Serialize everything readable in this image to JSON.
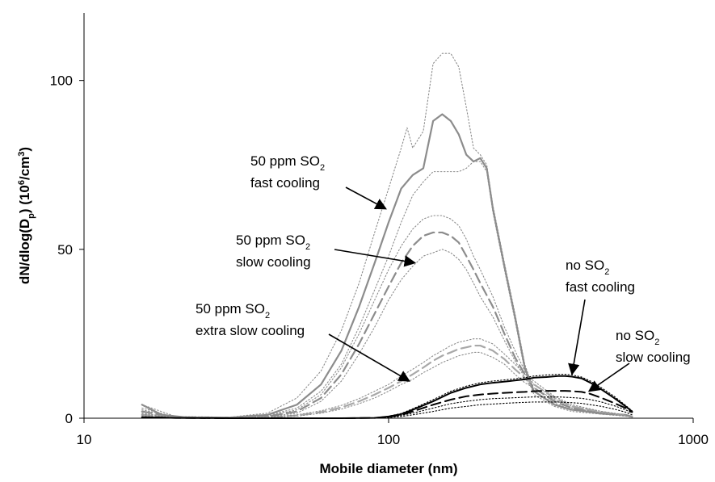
{
  "chart_data": {
    "type": "line",
    "xlabel": "Mobile diameter (nm)",
    "ylabel": {
      "prefix": "dN/dlog(D",
      "sub": "p",
      "middle": ") (10",
      "sup1": "6",
      "middle2": "/cm",
      "sup2": "3",
      "suffix": ")"
    },
    "x_scale": "log",
    "xlim": [
      10,
      1000
    ],
    "ylim": [
      0,
      120
    ],
    "x_ticks": [
      10,
      100,
      1000
    ],
    "x_tick_labels": [
      "10",
      "100",
      "1000"
    ],
    "y_ticks": [
      0,
      50,
      100
    ],
    "y_tick_labels": [
      "0",
      "50",
      "100"
    ],
    "grid": false,
    "legend": "none",
    "colors": {
      "gray": "#8c8c8c",
      "light_gray": "#a8a8a8",
      "black": "#000000"
    },
    "series": [
      {
        "style": "solid-gray",
        "x": [
          15.5,
          18,
          22,
          30,
          40,
          50,
          60,
          70,
          80,
          90,
          100,
          110,
          120,
          130,
          140,
          150,
          160,
          170,
          180,
          190,
          200,
          210,
          220,
          240,
          260,
          280,
          300,
          350,
          400,
          500,
          600,
          630
        ],
        "y": [
          4,
          1,
          0.2,
          0.2,
          1,
          4,
          10,
          20,
          33,
          46,
          58,
          68,
          72,
          74,
          88,
          90,
          88,
          84,
          78,
          76,
          77,
          74,
          62,
          45,
          30,
          15,
          8,
          4,
          2.5,
          1.5,
          1,
          0.5
        ]
      },
      {
        "style": "dotted-gray-upper",
        "x": [
          15.5,
          20,
          30,
          40,
          50,
          60,
          70,
          80,
          90,
          100,
          110,
          115,
          120,
          130,
          140,
          150,
          160,
          170,
          180,
          190,
          200,
          210,
          220,
          240,
          260,
          280,
          300,
          350,
          400,
          500,
          600,
          630
        ],
        "y": [
          4,
          0.5,
          0.3,
          1.5,
          6,
          14,
          26,
          40,
          55,
          68,
          80,
          86,
          80,
          85,
          105,
          108,
          108,
          104,
          92,
          80,
          78,
          75,
          63,
          46,
          31,
          16,
          8,
          4,
          2.5,
          1.5,
          1,
          0.5
        ]
      },
      {
        "style": "dotted-gray-lower",
        "x": [
          15.5,
          20,
          30,
          40,
          50,
          60,
          70,
          80,
          90,
          100,
          110,
          120,
          130,
          140,
          150,
          160,
          170,
          180,
          190,
          200,
          210,
          220,
          240,
          260,
          280,
          300,
          350,
          400,
          500,
          600,
          630
        ],
        "y": [
          3,
          0.3,
          0.2,
          0.8,
          3,
          8,
          16,
          27,
          38,
          48,
          58,
          66,
          70,
          73,
          73,
          73,
          73,
          74,
          76,
          76,
          73,
          61,
          44,
          29,
          14,
          7,
          3.5,
          2,
          1.2,
          0.8,
          0.4
        ]
      },
      {
        "style": "dashed-gray",
        "x": [
          15.5,
          20,
          30,
          40,
          50,
          60,
          70,
          80,
          90,
          100,
          110,
          120,
          130,
          140,
          150,
          160,
          170,
          180,
          190,
          200,
          220,
          240,
          260,
          280,
          300,
          350,
          400,
          500,
          600,
          630
        ],
        "y": [
          2,
          0.3,
          0.2,
          0.5,
          2,
          6,
          13,
          22,
          31,
          39,
          46,
          51,
          54,
          55,
          55,
          54,
          52,
          48,
          44,
          40,
          33,
          25,
          18,
          13,
          9,
          5,
          3,
          1.5,
          0.8,
          0.4
        ]
      },
      {
        "style": "dotted-gray-upper",
        "x": [
          15.5,
          20,
          30,
          40,
          50,
          60,
          70,
          80,
          90,
          100,
          110,
          120,
          130,
          140,
          150,
          160,
          170,
          180,
          190,
          200,
          220,
          240,
          260,
          280,
          300,
          350,
          400,
          500,
          600,
          630
        ],
        "y": [
          2.5,
          0.3,
          0.2,
          0.6,
          2.5,
          7,
          15,
          25,
          35,
          44,
          51,
          56,
          59,
          60,
          60,
          59,
          57,
          53,
          48,
          44,
          36,
          27,
          20,
          14,
          10,
          6,
          3.5,
          2,
          1,
          0.5
        ]
      },
      {
        "style": "dotted-gray-lower",
        "x": [
          15.5,
          20,
          30,
          40,
          50,
          60,
          70,
          80,
          90,
          100,
          110,
          120,
          130,
          140,
          150,
          160,
          170,
          180,
          190,
          200,
          220,
          240,
          260,
          280,
          300,
          350,
          400,
          500,
          600,
          630
        ],
        "y": [
          1.5,
          0.2,
          0.2,
          0.4,
          1.5,
          5,
          11,
          19,
          27,
          35,
          41,
          45,
          48,
          49,
          50,
          49,
          47,
          44,
          40,
          36,
          30,
          23,
          17,
          12,
          8,
          4.5,
          2.5,
          1.2,
          0.6,
          0.3
        ]
      },
      {
        "style": "dashed-gray-light",
        "x": [
          15.5,
          20,
          30,
          40,
          50,
          60,
          70,
          80,
          90,
          100,
          110,
          120,
          130,
          140,
          150,
          160,
          170,
          180,
          190,
          200,
          220,
          240,
          260,
          280,
          300,
          350,
          400,
          500,
          600,
          630
        ],
        "y": [
          1,
          0.2,
          0.1,
          0.2,
          0.8,
          1.8,
          3.2,
          5,
          7,
          9,
          11,
          13,
          15,
          17,
          18.5,
          19.5,
          20.5,
          21,
          21.5,
          21.5,
          20,
          17.5,
          14.5,
          12,
          10,
          6,
          3.5,
          1.8,
          0.8,
          0.4
        ]
      },
      {
        "style": "dotted-gray-upper",
        "x": [
          15.5,
          20,
          30,
          40,
          50,
          60,
          70,
          80,
          90,
          100,
          110,
          120,
          130,
          140,
          150,
          160,
          170,
          180,
          190,
          200,
          220,
          240,
          260,
          280,
          300,
          350,
          400,
          500,
          600,
          630
        ],
        "y": [
          1.2,
          0.2,
          0.1,
          0.3,
          1,
          2.2,
          3.8,
          5.8,
          8,
          10,
          12.5,
          14.5,
          16.5,
          18.5,
          20,
          21.5,
          22.5,
          23,
          23.5,
          23.5,
          22,
          19,
          16,
          13,
          11,
          6.5,
          4,
          2,
          1,
          0.5
        ]
      },
      {
        "style": "dotted-gray-lower",
        "x": [
          15.5,
          20,
          30,
          40,
          50,
          60,
          70,
          80,
          90,
          100,
          110,
          120,
          130,
          140,
          150,
          160,
          170,
          180,
          190,
          200,
          220,
          240,
          260,
          280,
          300,
          350,
          400,
          500,
          600,
          630
        ],
        "y": [
          0.8,
          0.1,
          0.1,
          0.2,
          0.6,
          1.5,
          2.7,
          4.3,
          6,
          8,
          10,
          11.5,
          13.5,
          15,
          16.5,
          17.5,
          18.5,
          19,
          19.5,
          19.5,
          18,
          16,
          13,
          10.5,
          9,
          5.5,
          3,
          1.6,
          0.7,
          0.3
        ]
      },
      {
        "style": "solid-black",
        "x": [
          15.5,
          20,
          30,
          50,
          70,
          90,
          100,
          110,
          120,
          140,
          160,
          180,
          200,
          220,
          250,
          280,
          300,
          330,
          360,
          380,
          400,
          430,
          460,
          500,
          550,
          600,
          630
        ],
        "y": [
          0.3,
          0.1,
          0,
          0,
          0,
          0.1,
          0.5,
          1.2,
          2.5,
          5,
          7.5,
          9,
          10,
          10.5,
          11,
          11.5,
          12,
          12.2,
          12.5,
          12.5,
          12.3,
          11.8,
          10.5,
          8.5,
          6,
          3.5,
          2
        ]
      },
      {
        "style": "dotted-black",
        "x": [
          15.5,
          20,
          30,
          50,
          70,
          90,
          100,
          110,
          120,
          140,
          160,
          180,
          200,
          220,
          250,
          280,
          300,
          330,
          360,
          380,
          400,
          430,
          460,
          500,
          550,
          600,
          630
        ],
        "y": [
          0.4,
          0.1,
          0,
          0,
          0,
          0.1,
          0.6,
          1.4,
          2.8,
          5.5,
          8,
          9.5,
          10.5,
          11,
          11.5,
          12,
          12.5,
          12.8,
          13,
          13,
          12.8,
          12.2,
          11,
          9,
          6.5,
          3.8,
          2.2
        ]
      },
      {
        "style": "dashed-black",
        "x": [
          15.5,
          20,
          30,
          50,
          70,
          90,
          100,
          110,
          120,
          140,
          160,
          180,
          200,
          220,
          250,
          280,
          300,
          330,
          360,
          380,
          400,
          430,
          460,
          500,
          550,
          600,
          630
        ],
        "y": [
          0.3,
          0.1,
          0,
          0,
          0,
          0.1,
          0.4,
          1,
          2,
          4,
          5.5,
          6.5,
          7,
          7.3,
          7.6,
          7.8,
          8,
          8.1,
          8.1,
          8.1,
          8,
          7.8,
          7.2,
          6,
          4.5,
          3,
          1.8
        ]
      },
      {
        "style": "dotted-black",
        "x": [
          15.5,
          20,
          30,
          50,
          70,
          90,
          100,
          110,
          120,
          140,
          160,
          180,
          200,
          220,
          250,
          280,
          300,
          330,
          360,
          380,
          400,
          430,
          460,
          500,
          550,
          600,
          630
        ],
        "y": [
          0.2,
          0.1,
          0,
          0,
          0,
          0.1,
          0.3,
          0.8,
          1.5,
          3,
          4.3,
          5,
          5.5,
          5.8,
          6,
          6.2,
          6.3,
          6.3,
          6.3,
          6.2,
          6.1,
          5.9,
          5.5,
          4.8,
          3.7,
          2.5,
          1.5
        ]
      },
      {
        "style": "dotted-black",
        "x": [
          15.5,
          20,
          30,
          50,
          70,
          90,
          100,
          110,
          120,
          140,
          160,
          180,
          200,
          220,
          250,
          280,
          300,
          330,
          360,
          380,
          400,
          430,
          460,
          500,
          550,
          600,
          630
        ],
        "y": [
          0.2,
          0.1,
          0,
          0,
          0,
          0.05,
          0.2,
          0.5,
          1,
          2,
          3,
          3.5,
          4,
          4.2,
          4.5,
          4.7,
          4.8,
          4.8,
          4.8,
          4.7,
          4.6,
          4.4,
          4,
          3.5,
          2.7,
          1.8,
          1
        ]
      }
    ],
    "annotations": [
      {
        "id": "a1",
        "lines": [
          {
            "text": "50 ppm SO",
            "sub": "2"
          },
          {
            "text": "fast cooling"
          }
        ],
        "arrow_to": [
          98,
          62
        ]
      },
      {
        "id": "a2",
        "lines": [
          {
            "text": "50 ppm SO",
            "sub": "2"
          },
          {
            "text": "slow cooling"
          }
        ],
        "arrow_to": [
          122,
          46
        ]
      },
      {
        "id": "a3",
        "lines": [
          {
            "text": "50 ppm SO",
            "sub": "2"
          },
          {
            "text": "extra slow cooling"
          }
        ],
        "arrow_to": [
          117,
          11
        ]
      },
      {
        "id": "a4",
        "lines": [
          {
            "text": "no SO",
            "sub": "2"
          },
          {
            "text": "fast cooling"
          }
        ],
        "arrow_to": [
          400,
          13
        ]
      },
      {
        "id": "a5",
        "lines": [
          {
            "text": "no SO",
            "sub": "2"
          },
          {
            "text": "slow cooling"
          }
        ],
        "arrow_to": [
          455,
          8
        ]
      }
    ]
  }
}
